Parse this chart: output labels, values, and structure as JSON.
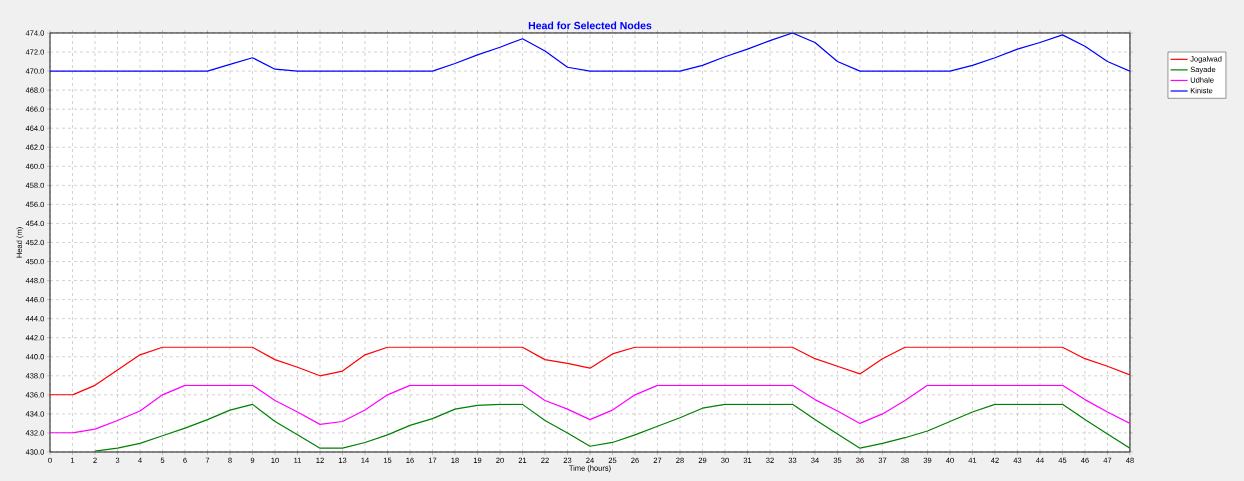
{
  "chart_data": {
    "type": "line",
    "title": "Head for Selected Nodes",
    "xlabel": "Time (hours)",
    "ylabel": "Head (m)",
    "x": [
      0,
      1,
      2,
      3,
      4,
      5,
      6,
      7,
      8,
      9,
      10,
      11,
      12,
      13,
      14,
      15,
      16,
      17,
      18,
      19,
      20,
      21,
      22,
      23,
      24,
      25,
      26,
      27,
      28,
      29,
      30,
      31,
      32,
      33,
      34,
      35,
      36,
      37,
      38,
      39,
      40,
      41,
      42,
      43,
      44,
      45,
      46,
      47,
      48
    ],
    "series": [
      {
        "name": "Jogalwad",
        "color": "#ff0000",
        "values": [
          436,
          436,
          437.0,
          438.6,
          440.2,
          441,
          441,
          441,
          441,
          441,
          439.7,
          438.9,
          438,
          438.5,
          440.2,
          441,
          441,
          441,
          441,
          441,
          441,
          441,
          439.7,
          439.3,
          438.8,
          440.3,
          441,
          441,
          441,
          441,
          441,
          441,
          441,
          441,
          439.8,
          439,
          438.2,
          439.8,
          441,
          441,
          441,
          441,
          441,
          441,
          441,
          441,
          439.8,
          439,
          438.1
        ]
      },
      {
        "name": "Sayade",
        "color": "#008000",
        "values": [
          null,
          null,
          430.1,
          430.4,
          430.9,
          431.7,
          432.5,
          433.4,
          434.4,
          435,
          433.2,
          431.8,
          430.4,
          430.4,
          431.0,
          431.8,
          432.8,
          433.5,
          434.5,
          434.9,
          435,
          435,
          433.3,
          432,
          430.6,
          431.0,
          431.8,
          432.7,
          433.6,
          434.6,
          435,
          435,
          435,
          435,
          433.4,
          431.9,
          430.4,
          430.9,
          431.5,
          432.2,
          433.2,
          434.2,
          435,
          435,
          435,
          435,
          433.4,
          431.9,
          430.4
        ]
      },
      {
        "name": "Udhale",
        "color": "#ff00ff",
        "values": [
          432,
          432,
          432.4,
          433.3,
          434.3,
          436,
          437,
          437,
          437,
          437,
          435.4,
          434.2,
          432.9,
          433.2,
          434.4,
          436,
          437,
          437,
          437,
          437,
          437,
          437,
          435.4,
          434.5,
          433.4,
          434.4,
          436,
          437,
          437,
          437,
          437,
          437,
          437,
          437,
          435.5,
          434.3,
          433.0,
          434.0,
          435.4,
          437,
          437,
          437,
          437,
          437,
          437,
          437,
          435.5,
          434.2,
          433.0
        ]
      },
      {
        "name": "Kiniste",
        "color": "#0000ff",
        "values": [
          470,
          470,
          470,
          470,
          470,
          470,
          470,
          470,
          470.7,
          471.4,
          470.2,
          470,
          470,
          470,
          470,
          470,
          470,
          470,
          470.8,
          471.7,
          472.5,
          473.4,
          472.1,
          470.4,
          470,
          470,
          470,
          470,
          470,
          470.6,
          471.5,
          472.3,
          473.2,
          474,
          473,
          471,
          470,
          470,
          470,
          470,
          470,
          470.6,
          471.4,
          472.3,
          473,
          473.8,
          472.6,
          471,
          470
        ]
      }
    ],
    "xlim": [
      0,
      48
    ],
    "xticks": [
      0,
      1,
      2,
      3,
      4,
      5,
      6,
      7,
      8,
      9,
      10,
      11,
      12,
      13,
      14,
      15,
      16,
      17,
      18,
      19,
      20,
      21,
      22,
      23,
      24,
      25,
      26,
      27,
      28,
      29,
      30,
      31,
      32,
      33,
      34,
      35,
      36,
      37,
      38,
      39,
      40,
      41,
      42,
      43,
      44,
      45,
      46,
      47,
      48
    ],
    "ylim": [
      430,
      474
    ],
    "yticks": [
      {
        "value": 430,
        "label": "430.0"
      },
      {
        "value": 432,
        "label": "432.0"
      },
      {
        "value": 434,
        "label": "434.0"
      },
      {
        "value": 436,
        "label": "436.0"
      },
      {
        "value": 438,
        "label": "438.0"
      },
      {
        "value": 440,
        "label": "440.0"
      },
      {
        "value": 442,
        "label": "442.0"
      },
      {
        "value": 444,
        "label": "444.0"
      },
      {
        "value": 446,
        "label": "446.0"
      },
      {
        "value": 448,
        "label": "448.0"
      },
      {
        "value": 450,
        "label": "450.0"
      },
      {
        "value": 452,
        "label": "452.0"
      },
      {
        "value": 454,
        "label": "454.0"
      },
      {
        "value": 456,
        "label": "456.0"
      },
      {
        "value": 458,
        "label": "458.0"
      },
      {
        "value": 460,
        "label": "460.0"
      },
      {
        "value": 462,
        "label": "462.0"
      },
      {
        "value": 464,
        "label": "464.0"
      },
      {
        "value": 466,
        "label": "466.0"
      },
      {
        "value": 468,
        "label": "468.0"
      },
      {
        "value": 470,
        "label": "470.0"
      },
      {
        "value": 472,
        "label": "472.0"
      },
      {
        "value": 474,
        "label": "474.0"
      }
    ],
    "grid": true,
    "legend": "top right",
    "marker": "none",
    "line_style": "solid"
  }
}
